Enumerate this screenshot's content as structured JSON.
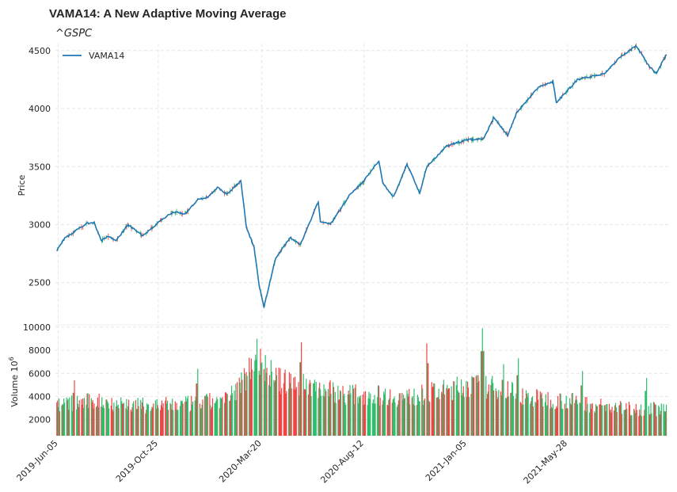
{
  "chart_data": {
    "type": "candlestick-with-volume",
    "title": "VAMA14: A New Adaptive Moving Average",
    "subtitle": "^GSPC",
    "price_panel": {
      "ylabel": "Price",
      "ylim": [
        2150,
        4560
      ],
      "yticks": [
        2500,
        3000,
        3500,
        4000,
        4500
      ],
      "legend": {
        "entries": [
          "VAMA14"
        ],
        "placement": "top-left"
      },
      "series": [
        {
          "name": "VAMA14",
          "color": "#1f77b4",
          "x": [
            "2019-06-03",
            "2019-06-14",
            "2019-06-28",
            "2019-07-15",
            "2019-07-26",
            "2019-08-05",
            "2019-08-14",
            "2019-08-26",
            "2019-09-12",
            "2019-10-03",
            "2019-10-25",
            "2019-11-15",
            "2019-12-03",
            "2019-12-20",
            "2020-01-03",
            "2020-01-17",
            "2020-01-31",
            "2020-02-19",
            "2020-02-27",
            "2020-03-09",
            "2020-03-16",
            "2020-03-23",
            "2020-04-08",
            "2020-04-29",
            "2020-05-14",
            "2020-06-08",
            "2020-06-11",
            "2020-06-26",
            "2020-07-22",
            "2020-08-12",
            "2020-09-02",
            "2020-09-08",
            "2020-09-23",
            "2020-10-12",
            "2020-10-30",
            "2020-11-09",
            "2020-12-08",
            "2021-01-05",
            "2021-01-29",
            "2021-02-12",
            "2021-03-04",
            "2021-03-17",
            "2021-04-16",
            "2021-05-07",
            "2021-05-12",
            "2021-06-11",
            "2021-07-19",
            "2021-08-10",
            "2021-09-02",
            "2021-09-20",
            "2021-10-01",
            "2021-10-15"
          ],
          "values": [
            2780,
            2880,
            2940,
            3010,
            3020,
            2860,
            2900,
            2860,
            3000,
            2900,
            3020,
            3110,
            3095,
            3215,
            3235,
            3320,
            3260,
            3380,
            2980,
            2800,
            2480,
            2290,
            2700,
            2890,
            2830,
            3200,
            3020,
            3010,
            3250,
            3380,
            3550,
            3350,
            3240,
            3520,
            3270,
            3500,
            3680,
            3730,
            3740,
            3920,
            3770,
            3970,
            4180,
            4230,
            4050,
            4250,
            4300,
            4440,
            4540,
            4370,
            4300,
            4470
          ]
        }
      ]
    },
    "volume_panel": {
      "ylabel": "Volume  10^6",
      "ylim": [
        600,
        10200
      ],
      "yticks": [
        2000,
        4000,
        6000,
        8000,
        10000
      ],
      "up_color": "#2ebd6b",
      "down_color": "#ef4444",
      "period_levels": {
        "x": [
          "2019-06-03",
          "2019-08-01",
          "2019-10-01",
          "2019-12-01",
          "2020-02-01",
          "2020-02-24",
          "2020-03-10",
          "2020-03-25",
          "2020-04-15",
          "2020-06-01",
          "2020-07-15",
          "2020-09-01",
          "2020-10-15",
          "2020-11-15",
          "2020-12-15",
          "2021-01-05",
          "2021-02-01",
          "2021-03-01",
          "2021-04-01",
          "2021-06-01",
          "2021-08-01",
          "2021-10-15"
        ],
        "values": [
          3300,
          3600,
          3200,
          3300,
          3700,
          5500,
          7500,
          6400,
          5300,
          4900,
          4200,
          4100,
          3900,
          4300,
          4600,
          5000,
          4800,
          4700,
          3900,
          3600,
          3000,
          2900
        ]
      },
      "notable_spikes": [
        {
          "x": "2019-06-28",
          "value": 5400
        },
        {
          "x": "2019-12-20",
          "value": 6400
        },
        {
          "x": "2020-03-13",
          "value": 9000
        },
        {
          "x": "2020-05-15",
          "value": 8700
        },
        {
          "x": "2020-11-09",
          "value": 8600
        },
        {
          "x": "2021-01-27",
          "value": 9900
        },
        {
          "x": "2021-02-26",
          "value": 6800
        },
        {
          "x": "2021-03-19",
          "value": 7300
        },
        {
          "x": "2021-06-18",
          "value": 6200
        },
        {
          "x": "2021-09-17",
          "value": 5600
        }
      ]
    },
    "x_axis": {
      "range": [
        "2019-06-01",
        "2021-10-20"
      ],
      "tick_dates": [
        "2019-06-05",
        "2019-10-25",
        "2020-03-20",
        "2020-08-12",
        "2021-01-05",
        "2021-05-28"
      ],
      "tick_labels": [
        "2019-Jun-05",
        "2019-Oct-25",
        "2020-Mar-20",
        "2020-Aug-12",
        "2021-Jan-05",
        "2021-May-28"
      ]
    },
    "grid": true
  }
}
